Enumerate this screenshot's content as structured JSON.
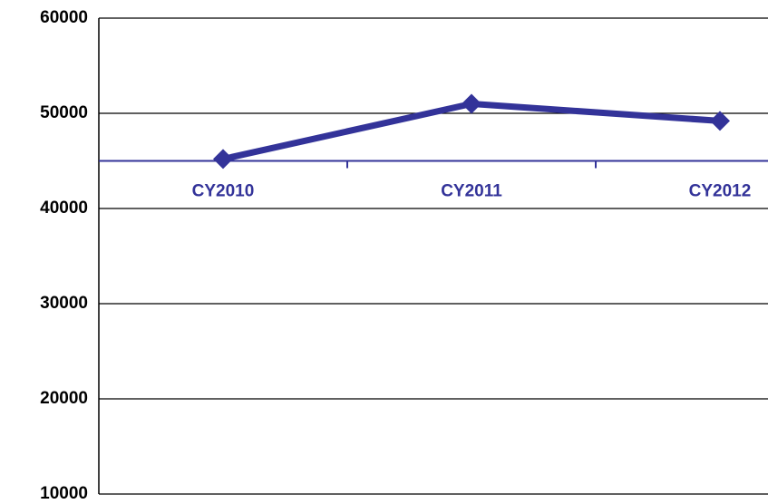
{
  "chart_data": {
    "type": "line",
    "categories": [
      "CY2010",
      "CY2011",
      "CY2012"
    ],
    "series": [
      {
        "color": "#333399",
        "values": [
          45200,
          51000,
          49200
        ]
      }
    ],
    "ylim": [
      10000,
      60000
    ],
    "yticks": [
      10000,
      20000,
      30000,
      40000,
      50000,
      60000
    ],
    "xaxis_crosses": 45000,
    "grid": true
  }
}
